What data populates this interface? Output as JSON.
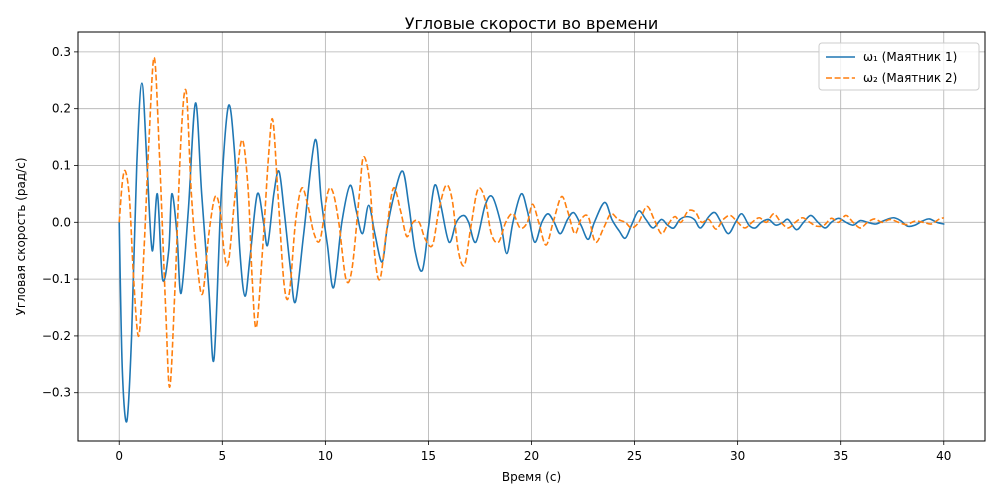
{
  "chart_data": {
    "type": "line",
    "title": "Угловые скорости во времени",
    "xlabel": "Время (с)",
    "ylabel": "Угловая скорость (рад/с)",
    "xlim": [
      -2,
      42
    ],
    "ylim": [
      -0.385,
      0.335
    ],
    "xticks": [
      0,
      5,
      10,
      15,
      20,
      25,
      30,
      35,
      40
    ],
    "yticks": [
      -0.3,
      -0.2,
      -0.1,
      0.0,
      0.1,
      0.2,
      0.3
    ],
    "grid": true,
    "legend_position": "top-right",
    "series": [
      {
        "name": "ω₁ (Маятник 1)",
        "color": "#1f77b4",
        "style": "solid",
        "points": [
          [
            0,
            0
          ],
          [
            0.15,
            -0.26
          ],
          [
            0.37,
            -0.35
          ],
          [
            0.6,
            -0.2
          ],
          [
            0.85,
            0.1
          ],
          [
            1.1,
            0.245
          ],
          [
            1.35,
            0.1
          ],
          [
            1.6,
            -0.05
          ],
          [
            1.85,
            0.05
          ],
          [
            2.1,
            -0.1
          ],
          [
            2.4,
            -0.05
          ],
          [
            2.55,
            0.05
          ],
          [
            2.8,
            -0.02
          ],
          [
            3.0,
            -0.125
          ],
          [
            3.35,
            0.02
          ],
          [
            3.7,
            0.21
          ],
          [
            4.0,
            0.05
          ],
          [
            4.35,
            -0.12
          ],
          [
            4.6,
            -0.24
          ],
          [
            4.95,
            0.05
          ],
          [
            5.3,
            0.205
          ],
          [
            5.6,
            0.12
          ],
          [
            5.85,
            -0.05
          ],
          [
            6.1,
            -0.13
          ],
          [
            6.35,
            -0.06
          ],
          [
            6.7,
            0.05
          ],
          [
            7.0,
            0.0
          ],
          [
            7.2,
            -0.04
          ],
          [
            7.5,
            0.05
          ],
          [
            7.75,
            0.09
          ],
          [
            8.0,
            0.02
          ],
          [
            8.3,
            -0.08
          ],
          [
            8.55,
            -0.14
          ],
          [
            8.95,
            -0.02
          ],
          [
            9.5,
            0.145
          ],
          [
            9.8,
            0.04
          ],
          [
            10.1,
            -0.04
          ],
          [
            10.4,
            -0.115
          ],
          [
            10.8,
            0.0
          ],
          [
            11.2,
            0.065
          ],
          [
            11.5,
            0.02
          ],
          [
            11.8,
            -0.02
          ],
          [
            12.1,
            0.03
          ],
          [
            12.4,
            -0.02
          ],
          [
            12.75,
            -0.07
          ],
          [
            13.0,
            -0.01
          ],
          [
            13.35,
            0.05
          ],
          [
            13.75,
            0.09
          ],
          [
            14.05,
            0.03
          ],
          [
            14.35,
            -0.05
          ],
          [
            14.7,
            -0.085
          ],
          [
            15.0,
            -0.01
          ],
          [
            15.3,
            0.065
          ],
          [
            15.6,
            0.03
          ],
          [
            16.0,
            -0.035
          ],
          [
            16.35,
            0.0
          ],
          [
            16.7,
            0.012
          ],
          [
            16.95,
            0.0
          ],
          [
            17.3,
            -0.035
          ],
          [
            17.75,
            0.03
          ],
          [
            18.1,
            0.045
          ],
          [
            18.5,
            0.0
          ],
          [
            18.8,
            -0.055
          ],
          [
            19.1,
            0.0
          ],
          [
            19.5,
            0.05
          ],
          [
            19.8,
            0.02
          ],
          [
            20.15,
            -0.035
          ],
          [
            20.5,
            0.0
          ],
          [
            20.8,
            0.015
          ],
          [
            21.1,
            0.0
          ],
          [
            21.4,
            -0.02
          ],
          [
            21.75,
            0.005
          ],
          [
            22.05,
            0.017
          ],
          [
            22.4,
            -0.005
          ],
          [
            22.75,
            -0.03
          ],
          [
            23.05,
            0.0
          ],
          [
            23.55,
            0.035
          ],
          [
            23.9,
            0.005
          ],
          [
            24.25,
            -0.015
          ],
          [
            24.55,
            -0.028
          ],
          [
            24.85,
            -0.005
          ],
          [
            25.2,
            0.02
          ],
          [
            25.55,
            0.005
          ],
          [
            25.9,
            -0.01
          ],
          [
            26.3,
            0.005
          ],
          [
            26.6,
            -0.005
          ],
          [
            26.9,
            -0.01
          ],
          [
            27.2,
            0.005
          ],
          [
            27.55,
            0.01
          ],
          [
            27.9,
            0.005
          ],
          [
            28.2,
            -0.01
          ],
          [
            28.6,
            0.01
          ],
          [
            28.9,
            0.017
          ],
          [
            29.2,
            0.0
          ],
          [
            29.55,
            -0.02
          ],
          [
            29.9,
            0.0
          ],
          [
            30.2,
            0.015
          ],
          [
            30.55,
            -0.005
          ],
          [
            30.85,
            -0.01
          ],
          [
            31.15,
            0.0
          ],
          [
            31.5,
            0.005
          ],
          [
            31.85,
            -0.005
          ],
          [
            32.2,
            0.0
          ],
          [
            32.45,
            0.005
          ],
          [
            32.85,
            -0.013
          ],
          [
            33.2,
            0.0
          ],
          [
            33.55,
            0.012
          ],
          [
            33.9,
            0.0
          ],
          [
            34.25,
            -0.01
          ],
          [
            34.55,
            0.0
          ],
          [
            34.9,
            0.007
          ],
          [
            35.25,
            0.0
          ],
          [
            35.6,
            -0.005
          ],
          [
            35.95,
            0.003
          ],
          [
            36.3,
            0.0
          ],
          [
            36.7,
            -0.003
          ],
          [
            37.1,
            0.003
          ],
          [
            37.55,
            0.008
          ],
          [
            37.9,
            0.003
          ],
          [
            38.25,
            -0.007
          ],
          [
            38.6,
            -0.005
          ],
          [
            38.95,
            0.002
          ],
          [
            39.3,
            0.006
          ],
          [
            39.65,
            0.0
          ],
          [
            40.0,
            -0.003
          ]
        ]
      },
      {
        "name": "ω₂ (Маятник 2)",
        "color": "#ff7f0e",
        "style": "dashed",
        "points": [
          [
            0,
            0
          ],
          [
            0.15,
            0.07
          ],
          [
            0.3,
            0.09
          ],
          [
            0.5,
            0.04
          ],
          [
            0.7,
            -0.1
          ],
          [
            0.95,
            -0.2
          ],
          [
            1.2,
            -0.05
          ],
          [
            1.45,
            0.15
          ],
          [
            1.7,
            0.29
          ],
          [
            1.95,
            0.12
          ],
          [
            2.25,
            -0.15
          ],
          [
            2.45,
            -0.29
          ],
          [
            2.7,
            -0.12
          ],
          [
            3.0,
            0.15
          ],
          [
            3.25,
            0.23
          ],
          [
            3.5,
            0.05
          ],
          [
            3.8,
            -0.08
          ],
          [
            4.05,
            -0.125
          ],
          [
            4.35,
            -0.02
          ],
          [
            4.65,
            0.045
          ],
          [
            4.9,
            0.02
          ],
          [
            5.1,
            -0.055
          ],
          [
            5.3,
            -0.07
          ],
          [
            5.6,
            0.04
          ],
          [
            5.95,
            0.145
          ],
          [
            6.25,
            0.06
          ],
          [
            6.45,
            -0.1
          ],
          [
            6.65,
            -0.185
          ],
          [
            6.95,
            -0.05
          ],
          [
            7.25,
            0.12
          ],
          [
            7.45,
            0.18
          ],
          [
            7.7,
            0.05
          ],
          [
            8.0,
            -0.11
          ],
          [
            8.25,
            -0.125
          ],
          [
            8.55,
            0.0
          ],
          [
            8.85,
            0.06
          ],
          [
            9.15,
            0.03
          ],
          [
            9.45,
            -0.02
          ],
          [
            9.75,
            -0.03
          ],
          [
            10.1,
            0.05
          ],
          [
            10.35,
            0.055
          ],
          [
            10.65,
            0.0
          ],
          [
            11.0,
            -0.1
          ],
          [
            11.3,
            -0.08
          ],
          [
            11.65,
            0.05
          ],
          [
            11.85,
            0.115
          ],
          [
            12.15,
            0.07
          ],
          [
            12.4,
            -0.06
          ],
          [
            12.65,
            -0.1
          ],
          [
            12.95,
            -0.02
          ],
          [
            13.3,
            0.06
          ],
          [
            13.65,
            0.02
          ],
          [
            13.95,
            -0.025
          ],
          [
            14.25,
            0.0
          ],
          [
            14.55,
            0.0
          ],
          [
            14.85,
            -0.03
          ],
          [
            15.2,
            -0.04
          ],
          [
            15.5,
            0.02
          ],
          [
            15.85,
            0.065
          ],
          [
            16.15,
            0.04
          ],
          [
            16.45,
            -0.05
          ],
          [
            16.75,
            -0.075
          ],
          [
            17.05,
            -0.01
          ],
          [
            17.4,
            0.058
          ],
          [
            17.75,
            0.04
          ],
          [
            18.05,
            -0.02
          ],
          [
            18.4,
            -0.035
          ],
          [
            18.75,
            0.0
          ],
          [
            19.1,
            0.015
          ],
          [
            19.45,
            -0.01
          ],
          [
            19.8,
            0.0
          ],
          [
            20.05,
            0.032
          ],
          [
            20.35,
            0.0
          ],
          [
            20.7,
            -0.04
          ],
          [
            21.05,
            0.0
          ],
          [
            21.45,
            0.045
          ],
          [
            21.75,
            0.02
          ],
          [
            22.1,
            -0.02
          ],
          [
            22.4,
            0.005
          ],
          [
            22.75,
            0.01
          ],
          [
            23.1,
            -0.035
          ],
          [
            23.5,
            -0.01
          ],
          [
            23.85,
            0.015
          ],
          [
            24.2,
            0.005
          ],
          [
            24.55,
            0.0
          ],
          [
            24.85,
            -0.01
          ],
          [
            25.2,
            0.0
          ],
          [
            25.6,
            0.028
          ],
          [
            25.95,
            0.005
          ],
          [
            26.3,
            -0.02
          ],
          [
            26.6,
            -0.005
          ],
          [
            26.95,
            0.01
          ],
          [
            27.25,
            0.0
          ],
          [
            27.6,
            0.02
          ],
          [
            27.95,
            0.018
          ],
          [
            28.25,
            0.0
          ],
          [
            28.6,
            0.005
          ],
          [
            28.95,
            -0.012
          ],
          [
            29.3,
            0.005
          ],
          [
            29.65,
            0.012
          ],
          [
            30.0,
            0.0
          ],
          [
            30.35,
            -0.01
          ],
          [
            30.7,
            0.0
          ],
          [
            31.05,
            0.008
          ],
          [
            31.4,
            0.0
          ],
          [
            31.75,
            0.015
          ],
          [
            32.1,
            0.0
          ],
          [
            32.45,
            -0.01
          ],
          [
            32.8,
            0.0
          ],
          [
            33.15,
            0.008
          ],
          [
            33.5,
            0.0
          ],
          [
            33.85,
            -0.007
          ],
          [
            34.2,
            -0.005
          ],
          [
            34.55,
            0.007
          ],
          [
            34.9,
            0.0
          ],
          [
            35.25,
            0.012
          ],
          [
            35.6,
            0.0
          ],
          [
            35.95,
            -0.01
          ],
          [
            36.3,
            0.0
          ],
          [
            36.65,
            0.006
          ],
          [
            37.0,
            0.0
          ],
          [
            37.4,
            0.005
          ],
          [
            37.8,
            0.0
          ],
          [
            38.2,
            -0.004
          ],
          [
            38.6,
            0.002
          ],
          [
            39.0,
            0.0
          ],
          [
            39.4,
            -0.003
          ],
          [
            39.75,
            0.005
          ],
          [
            40.0,
            0.008
          ]
        ]
      }
    ]
  }
}
